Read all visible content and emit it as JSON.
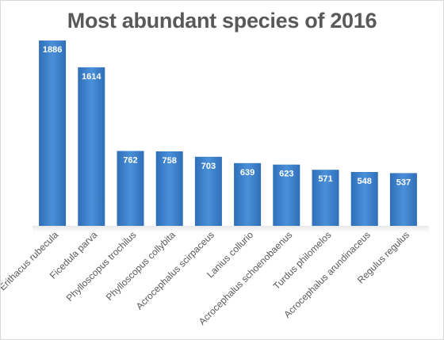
{
  "chart_data": {
    "type": "bar",
    "title": "Most abundant species of 2016",
    "xlabel": "",
    "ylabel": "",
    "categories": [
      "Erithacus rubecula",
      "Ficedula parva",
      "Phylloscopus trochilus",
      "Phylloscopus collybita",
      "Acrocephalus scirpaceus",
      "Lanius collurio",
      "Acrocephalus schoenobaenus",
      "Turdus philomelos",
      "Acrocephalus arundinaceus",
      "Regulus regulus"
    ],
    "values": [
      1886,
      1614,
      762,
      758,
      703,
      639,
      623,
      571,
      548,
      537
    ],
    "ylim": [
      0,
      2000
    ],
    "grid": false,
    "legend": "none",
    "data_labels": "inside-end",
    "colors": {
      "bar": "#4a90d9",
      "bar_dark": "#2f6fb8",
      "title": "#595959",
      "labels": "#595959"
    }
  }
}
